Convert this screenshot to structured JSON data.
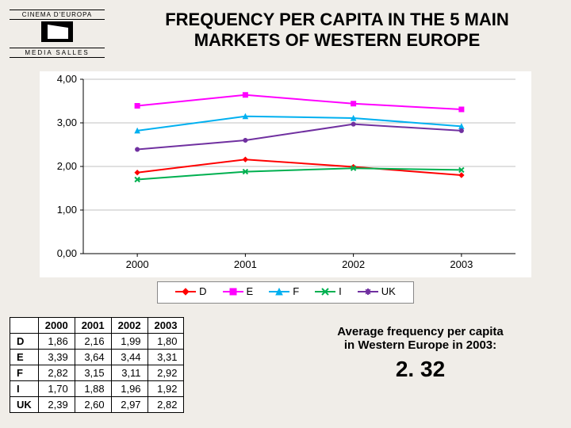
{
  "logo": {
    "top_text": "CINEMA D'EUROPA",
    "bottom_text": "MEDIA SALLES"
  },
  "title_line1": "FREQUENCY PER CAPITA IN THE 5 MAIN",
  "title_line2": "MARKETS OF WESTERN EUROPE",
  "chart": {
    "type": "line",
    "categories": [
      "2000",
      "2001",
      "2002",
      "2003"
    ],
    "ylim": [
      0,
      4
    ],
    "ytick_step": 1,
    "ytick_labels": [
      "0,00",
      "1,00",
      "2,00",
      "3,00",
      "4,00"
    ],
    "background_color": "#ffffff",
    "grid_color": "#c0c0c0",
    "axis_color": "#000000",
    "label_fontsize": 13,
    "line_width": 2,
    "marker_size": 6,
    "series": [
      {
        "name": "D",
        "color": "#ff0000",
        "marker": "diamond",
        "values": [
          1.86,
          2.16,
          1.99,
          1.8
        ]
      },
      {
        "name": "E",
        "color": "#ff00ff",
        "marker": "square",
        "values": [
          3.39,
          3.64,
          3.44,
          3.31
        ]
      },
      {
        "name": "F",
        "color": "#00b0f0",
        "marker": "triangle",
        "values": [
          2.82,
          3.15,
          3.11,
          2.92
        ]
      },
      {
        "name": "I",
        "color": "#00b050",
        "marker": "x",
        "values": [
          1.7,
          1.88,
          1.96,
          1.92
        ]
      },
      {
        "name": "UK",
        "color": "#7030a0",
        "marker": "star",
        "values": [
          2.39,
          2.6,
          2.97,
          2.82
        ]
      }
    ]
  },
  "table": {
    "columns": [
      "",
      "2000",
      "2001",
      "2002",
      "2003"
    ],
    "rows": [
      [
        "D",
        "1,86",
        "2,16",
        "1,99",
        "1,80"
      ],
      [
        "E",
        "3,39",
        "3,64",
        "3,44",
        "3,31"
      ],
      [
        "F",
        "2,82",
        "3,15",
        "3,11",
        "2,92"
      ],
      [
        "I",
        "1,70",
        "1,88",
        "1,96",
        "1,92"
      ],
      [
        "UK",
        "2,39",
        "2,60",
        "2,97",
        "2,82"
      ]
    ]
  },
  "average": {
    "label_line1": "Average frequency per capita",
    "label_line2": "in Western Europe in 2003:",
    "value": "2. 32"
  }
}
